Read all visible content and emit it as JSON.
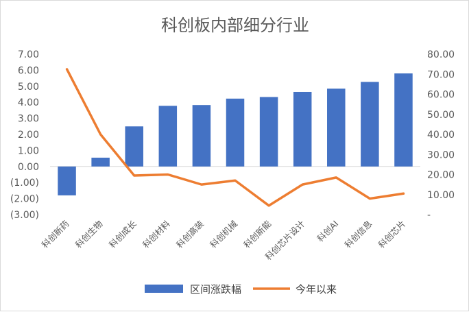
{
  "chart_data": {
    "type": "bar+line",
    "title": "科创板内部细分行业",
    "categories": [
      "科创新药",
      "科创生物",
      "科创成长",
      "科创材料",
      "科创高装",
      "科创机械",
      "科创新能",
      "科创芯片设计",
      "科创AI",
      "科创信息",
      "科创芯片"
    ],
    "series": [
      {
        "name": "区间涨跌幅",
        "type": "bar",
        "axis": "left",
        "color": "#4472c4",
        "values": [
          -1.8,
          0.55,
          2.5,
          3.78,
          3.83,
          4.23,
          4.33,
          4.65,
          4.85,
          5.27,
          5.8
        ]
      },
      {
        "name": "今年以来",
        "type": "line",
        "axis": "right",
        "color": "#ed7d31",
        "values": [
          72.5,
          40.0,
          19.5,
          20.0,
          15.0,
          17.0,
          4.5,
          15.0,
          18.5,
          8.0,
          10.5
        ]
      }
    ],
    "y_left": {
      "min": -3,
      "max": 7,
      "ticks": [
        7,
        6,
        5,
        4,
        3,
        2,
        1,
        0,
        -1,
        -2,
        -3
      ],
      "tick_labels": [
        "7.00",
        "6.00",
        "5.00",
        "4.00",
        "3.00",
        "2.00",
        "1.00",
        "0.00",
        "(1.00)",
        "(2.00)",
        "(3.00)"
      ],
      "negative_label_color": "#ff0000"
    },
    "y_right": {
      "min": 0,
      "max": 80,
      "ticks": [
        80,
        70,
        60,
        50,
        40,
        30,
        20,
        10,
        0
      ],
      "tick_labels": [
        "80.00",
        "70.00",
        "60.00",
        "50.00",
        "40.00",
        "30.00",
        "20.00",
        "10.00",
        "-"
      ]
    },
    "grid": false,
    "legend_position": "bottom"
  }
}
